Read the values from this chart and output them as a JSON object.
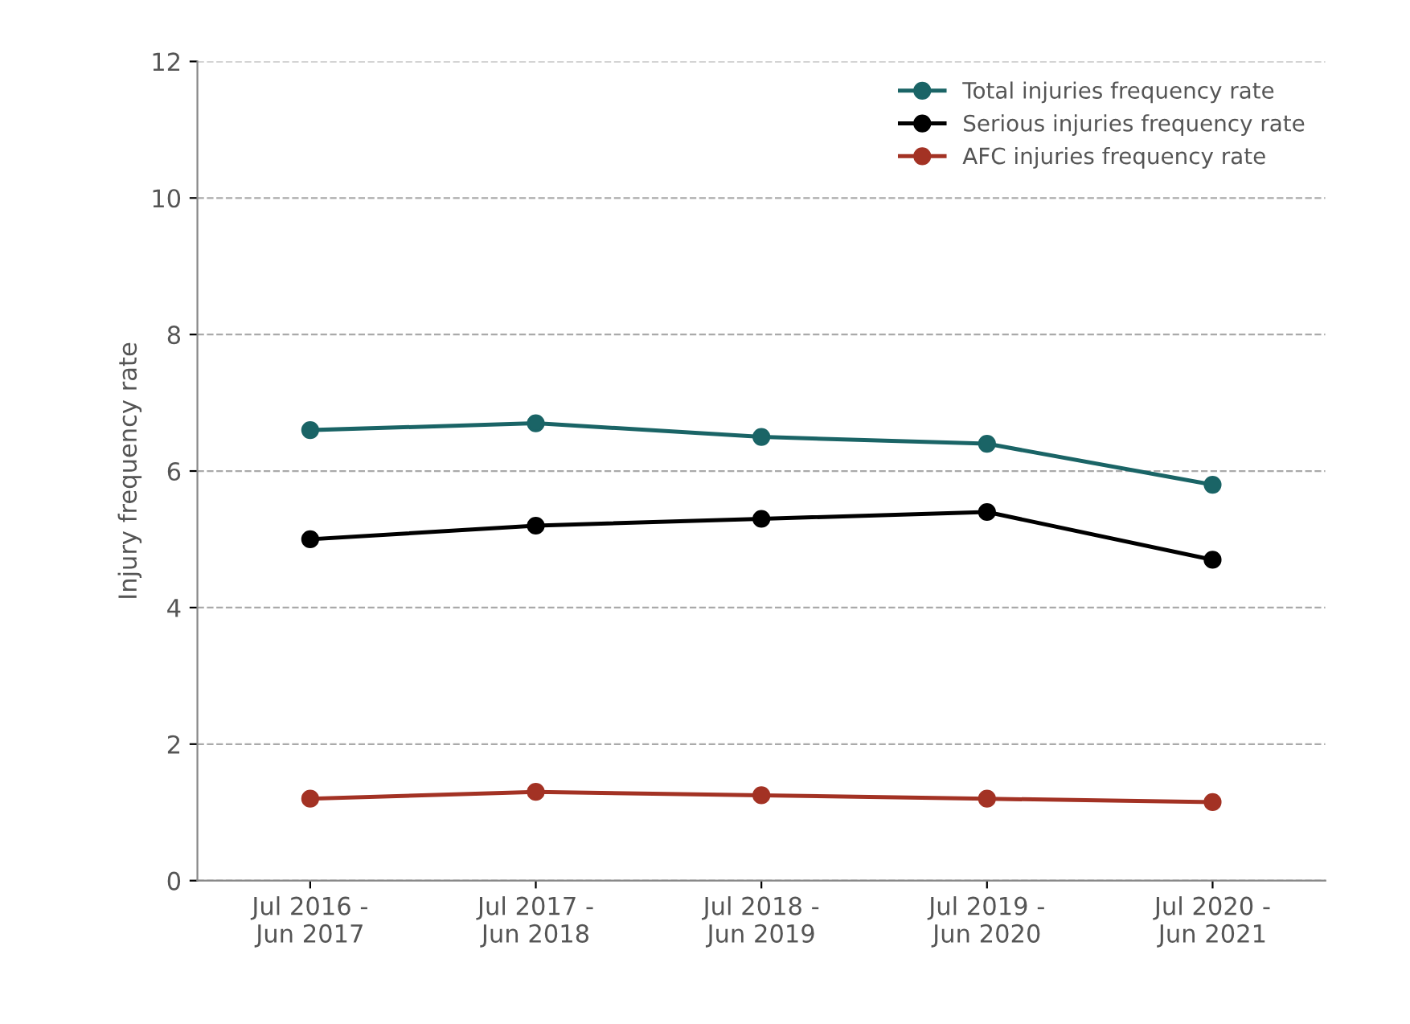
{
  "chart_data": {
    "type": "line",
    "ylabel": "Injury frequency rate",
    "categories": [
      "Jul 2016 -\nJun 2017",
      "Jul 2017 -\nJun 2018",
      "Jul 2018 -\nJun 2019",
      "Jul 2019 -\nJun 2020",
      "Jul 2020 -\nJun 2021"
    ],
    "series": [
      {
        "name": "Total injuries frequency rate",
        "color": "#1a6466",
        "values": [
          6.6,
          6.7,
          6.5,
          6.4,
          5.8
        ]
      },
      {
        "name": "Serious injuries frequency rate",
        "color": "#000000",
        "values": [
          5.0,
          5.2,
          5.3,
          5.4,
          4.7
        ]
      },
      {
        "name": "AFC injuries frequency rate",
        "color": "#a33224",
        "values": [
          1.2,
          1.3,
          1.25,
          1.2,
          1.15
        ]
      }
    ],
    "ylim": [
      0,
      12
    ],
    "yticks": [
      0,
      2,
      4,
      6,
      8,
      10,
      12
    ],
    "grid": "y",
    "legend": "top right",
    "marker": "circle",
    "line_style": "solid"
  }
}
